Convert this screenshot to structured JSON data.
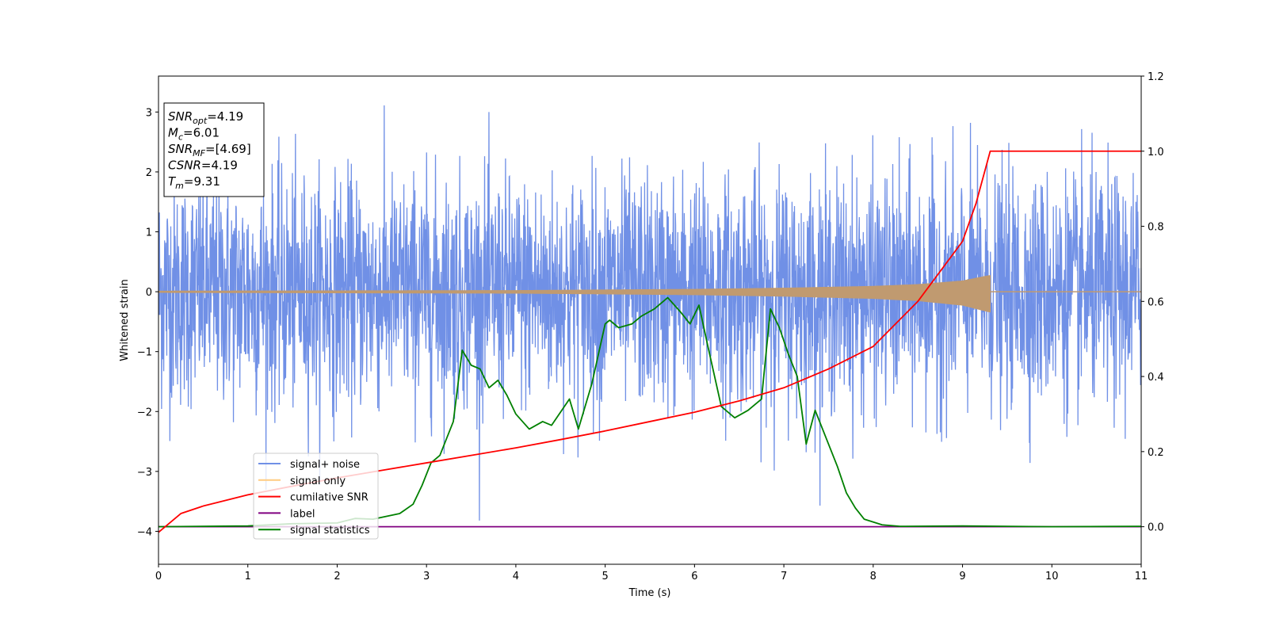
{
  "chart_data": {
    "type": "line",
    "xlabel": "Time (s)",
    "ylabel": "Whitened strain",
    "xlim": [
      0,
      11
    ],
    "ylim_left": [
      -4.55,
      3.6
    ],
    "ylim_right": [
      -0.1,
      1.2
    ],
    "x_ticks": [
      "0",
      "1",
      "2",
      "3",
      "4",
      "5",
      "6",
      "7",
      "8",
      "9",
      "10",
      "11"
    ],
    "y_ticks_left": [
      "−4",
      "−3",
      "−2",
      "−1",
      "0",
      "1",
      "2",
      "3"
    ],
    "y_ticks_right": [
      "0.0",
      "0.2",
      "0.4",
      "0.6",
      "0.8",
      "1.0",
      "1.2"
    ],
    "grid": false,
    "legend_position": "lower-left",
    "colors": {
      "signal_noise": "#7090e6",
      "signal_only": "#c09a70",
      "cumulative_snr": "#ff0000",
      "label": "#800080",
      "signal_statistics": "#008000"
    },
    "info_box": [
      {
        "main": "SNR",
        "sub": "opt",
        "value": "=4.19"
      },
      {
        "main": "M",
        "sub": "c",
        "value": "=6.01"
      },
      {
        "main": "SNR",
        "sub": "MF",
        "value": "=[4.69]"
      },
      {
        "main": "CSNR",
        "sub": "",
        "value": "=4.19"
      },
      {
        "main": "T",
        "sub": "m",
        "value": "=9.31"
      }
    ],
    "series": [
      {
        "name": "signal+ noise",
        "axis": "left",
        "description_envelope": {
          "x_range": [
            0,
            11
          ],
          "typical_amplitude": 1.2,
          "peak_amplitude": 3.25
        }
      },
      {
        "name": "signal only",
        "axis": "left",
        "envelope": {
          "x": [
            0,
            2,
            4,
            6,
            7,
            8,
            8.5,
            9,
            9.3
          ],
          "amp": [
            0.01,
            0.015,
            0.02,
            0.04,
            0.06,
            0.09,
            0.12,
            0.18,
            0.27
          ],
          "x_end": 9.31
        }
      },
      {
        "name": "cumilative SNR",
        "axis": "right",
        "x": [
          0,
          0.25,
          0.5,
          1,
          1.5,
          2,
          2.5,
          3,
          3.5,
          4,
          4.5,
          5,
          5.5,
          6,
          6.5,
          7,
          7.5,
          8,
          8.5,
          9,
          9.15,
          9.31,
          11
        ],
        "y": [
          -0.015,
          0.035,
          0.055,
          0.085,
          0.108,
          0.13,
          0.15,
          0.17,
          0.19,
          0.21,
          0.232,
          0.255,
          0.28,
          0.305,
          0.335,
          0.37,
          0.42,
          0.48,
          0.6,
          0.76,
          0.86,
          1.0,
          1.0
        ]
      },
      {
        "name": "label",
        "axis": "right",
        "x": [
          0,
          11
        ],
        "y": [
          0,
          0
        ]
      },
      {
        "name": "signal statistics",
        "axis": "right",
        "x": [
          0,
          1,
          1.5,
          2,
          2.2,
          2.4,
          2.7,
          2.85,
          2.95,
          3.05,
          3.15,
          3.3,
          3.4,
          3.5,
          3.6,
          3.7,
          3.8,
          3.9,
          4,
          4.15,
          4.3,
          4.4,
          4.6,
          4.7,
          4.85,
          5,
          5.05,
          5.15,
          5.3,
          5.4,
          5.55,
          5.7,
          5.85,
          5.95,
          6.05,
          6.15,
          6.3,
          6.45,
          6.6,
          6.75,
          6.85,
          6.95,
          7.05,
          7.15,
          7.25,
          7.35,
          7.45,
          7.6,
          7.7,
          7.8,
          7.9,
          8.1,
          8.3,
          9,
          10,
          11
        ],
        "y": [
          0,
          0.002,
          0.008,
          0.01,
          0.022,
          0.02,
          0.035,
          0.06,
          0.11,
          0.17,
          0.19,
          0.28,
          0.47,
          0.43,
          0.42,
          0.37,
          0.39,
          0.35,
          0.3,
          0.26,
          0.28,
          0.27,
          0.34,
          0.26,
          0.38,
          0.54,
          0.55,
          0.53,
          0.54,
          0.56,
          0.58,
          0.61,
          0.57,
          0.54,
          0.59,
          0.48,
          0.32,
          0.29,
          0.31,
          0.34,
          0.58,
          0.53,
          0.46,
          0.4,
          0.22,
          0.31,
          0.25,
          0.16,
          0.09,
          0.05,
          0.02,
          0.005,
          0.001,
          0.002,
          0,
          0.001
        ]
      }
    ]
  }
}
